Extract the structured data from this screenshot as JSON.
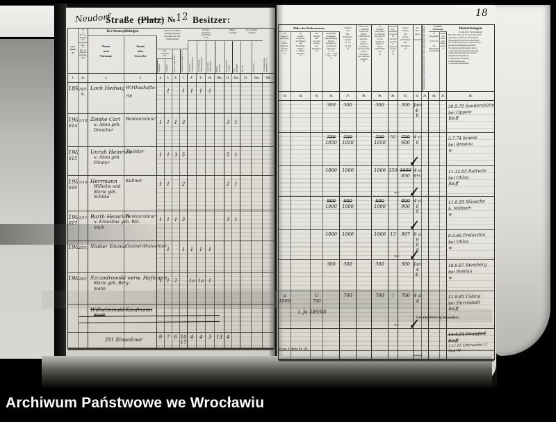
{
  "archive": {
    "caption": "Archiwum Państwowe we Wrocławiu"
  },
  "page": {
    "number": "18"
  },
  "title": {
    "street_hw": "Neudorf",
    "strasse_label": "Straße",
    "platz_label": "(Platz)",
    "no_label": "№",
    "house_no_hw": "12",
    "besitzer_label": "Besitzer:"
  },
  "marks": {
    "flourish_glyph": "✓",
    "arrow_glyph": "←"
  },
  "stamp_note": "Gesammtbetrag besonders",
  "footer": {
    "form_label": "Form. V. Mehr Nr. 151.",
    "anleitung_label": "Anleitung"
  },
  "left_table": {
    "header": {
      "col1": "Lau-\nfende\n№",
      "col1a": "№\na.\nder vor-\njährigen\nVer-\nanlagungs-\nliste,\nb.\nder vor-\njährigen\nZugangs-\nliste",
      "group_taxpayer": "Des Steuerpflichtigen",
      "col2": "Name\nund\nVorname",
      "col3": "Stand\noder\nGewerbe",
      "group_persons": "Zahl der zur Haus-\nhaltung gehörigen\nPersonen oder der\nEingelassenen",
      "over14": "über\n14 Jahren\nalte",
      "col4": "männlich",
      "col5": "weiblich",
      "col6": "unter 14 Jahren alte",
      "col7": "Summe der Spalten 4—6",
      "group_a": "Der Ein-\ngelassenen\nunterliegen\nnicht",
      "col8": "der Staats-\neinkommensteuer",
      "col9": "der Gemeinde-\neinkommensteuer",
      "col10": "wegen Orts-\nabwesenheit",
      "col10a": "Militär-\npersonen",
      "group_b": "Bisher\nveranlagt",
      "col11": "Personen über\n14 Jahre",
      "col11a": "Ein-\ngezogene",
      "group_c": "Wo zur Steuer\nveranlagt",
      "col12": "im Orte",
      "col12a": "anderweit",
      "col12b": "Ob Reklamation\neingelegt u. s. w."
    },
    "col_numbers": [
      "1.",
      "1a.",
      "2.",
      "3.",
      "4.",
      "5.",
      "6.",
      "7.",
      "8.",
      "9.",
      "10.",
      "10a.",
      "11.",
      "11a.",
      "12.",
      "12a.",
      "12b."
    ],
    "rows": [
      {
        "no": "1899",
        "no2": "",
        "date": "29/12\nb.",
        "name": [
          "Loch Hedwig"
        ],
        "stand": [
          "Wirthschafte-",
          "rin"
        ],
        "cells": {
          "5": "1",
          "7": "1",
          "8": "1",
          "9": "1",
          "10": "1"
        }
      },
      {
        "no": "1900",
        "no2": "614",
        "date": "1/10",
        "name": [
          "Zeiske Carl",
          "u. Anna geb.",
          "Drescher"
        ],
        "stand": [
          "Restaurateur"
        ],
        "cells": {
          "4": "1",
          "5": "1",
          "6": "1",
          "7": "3",
          "11": "3",
          "11a": "1"
        }
      },
      {
        "no": "1901",
        "no2": "615",
        "date": "",
        "name": [
          "Unruh Heinrich",
          "u. Anna geb.",
          "Förster"
        ],
        "stand": [
          "Tischler"
        ],
        "cells": {
          "4": "1",
          "5": "1",
          "6": "3",
          "7": "5",
          "11": "5",
          "11a": "1"
        }
      },
      {
        "no": "1902",
        "no2": "616",
        "date": "7/10",
        "name": [
          "Herrmann",
          "Wilhelm und",
          "Marie geb.",
          "Schilke"
        ],
        "stand": [
          "Kellner"
        ],
        "cells": {
          "4": "1",
          "5": "1",
          "7": "2",
          "11": "2",
          "11a": "1"
        }
      },
      {
        "no": "1903",
        "no2": "617",
        "date": "1/11",
        "name": [
          "Barth Heinrich",
          "u. Ernestine geb. Wil-",
          "lnick"
        ],
        "stand": [
          "Restaurateur"
        ],
        "cells": {
          "4": "1",
          "5": "1",
          "6": "1",
          "7": "3",
          "11": "3",
          "11a": "1"
        }
      },
      {
        "no": "1904",
        "no2": "",
        "date": "25/12",
        "name": [
          "Stober Emma"
        ],
        "stand": [
          "Gastwirthstochter"
        ],
        "cells": {
          "5": "1",
          "7": "1",
          "8": "1",
          "9": "1",
          "10": "1"
        }
      },
      {
        "no": "1905",
        "no2": "",
        "date": "29/11",
        "name": [
          "Szczodrowski verw. Hofmann",
          "Marie geb. Berg-",
          "mann"
        ],
        "stand": [],
        "cells": {
          "4": "1",
          "5": "1",
          "6": "2",
          "8": "1a",
          "9": "1a",
          "10": "1"
        }
      },
      {
        "no": "",
        "no2": "",
        "date": "",
        "name": [
          "Wilhelminski Kaufmann",
          "Stadt"
        ],
        "stand": [],
        "struck": true,
        "cells": {}
      }
    ],
    "totals": {
      "label": "291 Einwohner",
      "cells": {
        "4": "9",
        "5": "7",
        "6": "6",
        "7": "16\n17",
        "8": "4",
        "9": "4",
        "10": "3",
        "10a": "13",
        "11": "4"
      }
    }
  },
  "right_table": {
    "header": {
      "group_income": "Höhe des Einkommens:",
      "col13": "aus\nKapital-\nvermögen,\nb.\nWerth-\npapieren,\nZinsen\nu. s. w.\nℳ",
      "col14": "aus\nGrund-\nvermögen,\nPachtungen\nund\nWohnungs-\nmiethe,\nb. eigener\nWohnung\nℳ",
      "col15": "aus\nHandel\nund\nGewerbe\neinschl.\ndes\nBergbaues\nℳ",
      "col16": "aus gewinn-\nbringender\nBeschäftigung\nund aus\nRechten auf\nperiodische\nHebungen\nu. s. w.\n1. Jan., 1. April,\n1. Juli, 1. Okt.\nℳ",
      "col17": "Summe\ndes\nEin-\nkommens\n(Spalte\n13, 14,\n15, 16)\nℳ",
      "col18": "Hiervon ab:\n1. Schulden-\nzinsen und\nRenten,\n2. Beiträge zu\nKranken-,\nUnfall-,\nAlters- u.\nInvaliditäts-\nversicherungs-\nkassen,\n3. Lebens-\nversicherungs-\nprämien\nℳ",
      "col19": "Es\nverbleibt\nnach Abzug\nder Beträge\nin Spalte 18\nvon der\nSumme in\nSpalte 17\nJahres-\neinkommen\nvon\nℳ",
      "col20": "Aus dem\nEin-\nkommen\nin Spalte 19\nsind für\ndas Jahr\nab-\ngerundet\nworden\nauf\nℳ",
      "col21": "Jahres-\nbetrag\ndes\nsteuer-\npflichtigen\nEin-\nkommens\nℳ",
      "col22": "Im\nVor-\njahre\n\nEinstufung",
      "col23": "Veränderung der Steuerstufe im Laufe des Jahres nebst Angabe des Grundes",
      "group_fest": "Nach der Festsetzung",
      "col24": "ist\nfestgestellt\n\n§ 18 § 19\n\ndes\nEinkommen-\nsteuergesetzes",
      "col25": "beträgt\nder\nveran-\nlagte\nSteuer-\nbetrag\nℳ",
      "col26_title": "Bemerkungen",
      "col26_sub": "(Grund der Veranlagung)",
      "col26_note": "NB. Hier sind auch die nach dem ersten\nangelegten, behufs der Veranlagung\nfestgestellten Nachweise einzutragen.\nAls solche sind nach § 19 und den Aus-\nführungsbestimmungen genannt:\nNachgewiesene Erledigung durch:\na. Zuschrift zur Ergänzung der Liste,\nb. Benachrichtigung zum Vortheil\nsämmtlicher Ergebnisse;\nc. anderweiten Wohnsitz;\nd. Berichtigung und\ne. besondere Begebnisse."
    },
    "col_numbers": [
      "13.",
      "14.",
      "15.",
      "16.",
      "17.",
      "18.",
      "19.",
      "20.",
      "21.",
      "22.",
      "23.",
      "24.",
      "25.",
      "26."
    ],
    "rows": [
      {
        "cells": {
          "16": "300",
          "17": "300",
          "19": "300",
          "21": "300",
          "22": "Jan:\n4-\nb"
        },
        "remark": [
          "30.9.70 Sandershütte",
          "bei Oppeln",
          "Reiff"
        ]
      },
      {
        "cells": {
          "16": "~750\n1050",
          "17": "~750\n1050",
          "19": "~750\n1050",
          "20": "52",
          "21": "~750\n600",
          "22": "4 a\n6"
        },
        "flourish": true,
        "remark": [
          "3.7.74 Kniese",
          "bei Breslau",
          "w"
        ]
      },
      {
        "cells": {
          "16": "1000",
          "17": "1000",
          "19": "1000",
          "20": "150",
          "21": "~1000\n850",
          "22": "4 a\n6½"
        },
        "flourish": true,
        "arrow": true,
        "remark": [
          "11.12.65 Rattwitz",
          "bei Ohlau",
          "Reiff"
        ]
      },
      {
        "cells": {
          "16": "~800\n1000",
          "17": "~800\n1000",
          "19": "~800\n1000",
          "21": "~800\n900",
          "22": "4 a\n6\n6"
        },
        "flourish": true,
        "remark": [
          "11.8.59 Mäusche",
          "b. Militsch",
          "w"
        ]
      },
      {
        "cells": {
          "16": "1000",
          "17": "1000",
          "19": "1000",
          "20": "13",
          "21": "987",
          "22": "6 a\n6\n6\n6"
        },
        "flourish": true,
        "arrow": true,
        "remark": [
          "8.9.66 Frelaschin",
          "bei Ohlau",
          "w"
        ]
      },
      {
        "cells": {
          "16": "300",
          "17": "300",
          "19": "300",
          "21": "300",
          "22": "Jan 4\n4-"
        },
        "remark": [
          "18.8.87 Riemberg",
          "bei Wohlau",
          "w"
        ]
      },
      {
        "cells": {
          "13": "a 1000",
          "15": "U 700",
          "17": "700",
          "19": "700",
          "20": "!",
          "21": "700",
          "22": "4 a\n4"
        },
        "sub_left": "i. Ja 589/06",
        "flourish": true,
        "arrow": true,
        "stamp": true,
        "remark": [
          "11.8.85 Uslang",
          "bei Herrnstadt",
          "Reiff"
        ]
      },
      {
        "cells": {},
        "remark_struck": [
          "14.4.94 Stoppforf",
          "Reiff"
        ],
        "remark_small": [
          "2.11.05 Oderwalde 12",
          "Zug 96"
        ]
      }
    ],
    "totals": {
      "anleitung_col": "22"
    }
  }
}
